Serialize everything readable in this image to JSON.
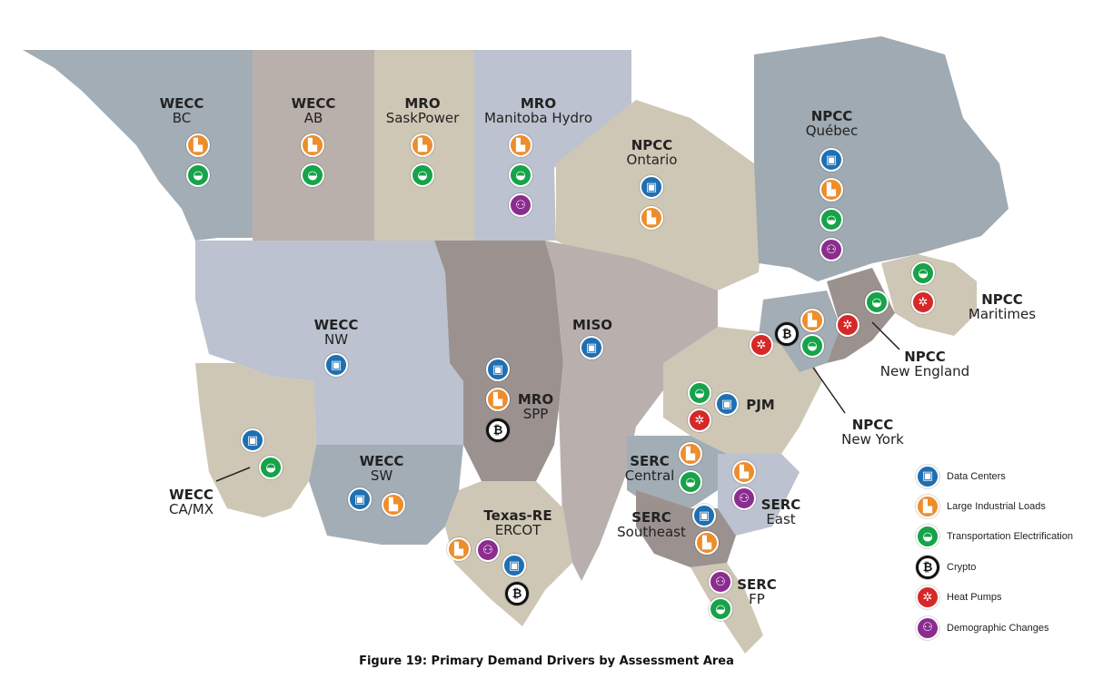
{
  "caption": "Figure 19: Primary Demand Drivers by Assessment Area",
  "colors": {
    "data_centers": "#1f6fb2",
    "industrial": "#ee8d2c",
    "transport": "#16a34a",
    "crypto": "#111111",
    "heat_pumps": "#d62828",
    "demographic": "#8b2c8f"
  },
  "legend": [
    {
      "key": "data_centers",
      "label": "Data Centers",
      "icon": "chip-icon"
    },
    {
      "key": "industrial",
      "label": "Large Industrial Loads",
      "icon": "factory-icon"
    },
    {
      "key": "transport",
      "label": "Transportation Electrification",
      "icon": "car-icon"
    },
    {
      "key": "crypto",
      "label": "Crypto",
      "icon": "bitcoin-icon"
    },
    {
      "key": "heat_pumps",
      "label": "Heat Pumps",
      "icon": "heat-pump-icon"
    },
    {
      "key": "demographic",
      "label": "Demographic Changes",
      "icon": "people-icon"
    }
  ],
  "regions": [
    {
      "id": "wecc-bc",
      "council": "WECC",
      "name": "BC",
      "drivers": [
        "industrial",
        "transport"
      ]
    },
    {
      "id": "wecc-ab",
      "council": "WECC",
      "name": "AB",
      "drivers": [
        "industrial",
        "transport"
      ]
    },
    {
      "id": "mro-sask",
      "council": "MRO",
      "name": "SaskPower",
      "drivers": [
        "industrial",
        "transport"
      ]
    },
    {
      "id": "mro-manitoba",
      "council": "MRO",
      "name": "Manitoba Hydro",
      "drivers": [
        "industrial",
        "transport",
        "demographic"
      ]
    },
    {
      "id": "npcc-ontario",
      "council": "NPCC",
      "name": "Ontario",
      "drivers": [
        "data_centers",
        "industrial"
      ]
    },
    {
      "id": "npcc-quebec",
      "council": "NPCC",
      "name": "Québec",
      "drivers": [
        "data_centers",
        "industrial",
        "transport",
        "demographic"
      ]
    },
    {
      "id": "npcc-maritimes",
      "council": "NPCC",
      "name": "Maritimes",
      "drivers": [
        "transport",
        "heat_pumps"
      ]
    },
    {
      "id": "npcc-newengland",
      "council": "NPCC",
      "name": "New England",
      "drivers": [
        "transport",
        "heat_pumps"
      ]
    },
    {
      "id": "npcc-newyork",
      "council": "NPCC",
      "name": "New York",
      "drivers": [
        "heat_pumps",
        "crypto",
        "industrial",
        "transport"
      ]
    },
    {
      "id": "wecc-nw",
      "council": "WECC",
      "name": "NW",
      "drivers": [
        "data_centers"
      ]
    },
    {
      "id": "miso",
      "council": "MISO",
      "name": "",
      "drivers": [
        "data_centers"
      ]
    },
    {
      "id": "mro-spp",
      "council": "MRO",
      "name": "SPP",
      "drivers": [
        "data_centers",
        "industrial",
        "crypto"
      ]
    },
    {
      "id": "pjm",
      "council": "PJM",
      "name": "",
      "drivers": [
        "transport",
        "heat_pumps",
        "data_centers"
      ]
    },
    {
      "id": "wecc-camx",
      "council": "WECC",
      "name": "CA/MX",
      "drivers": [
        "data_centers",
        "transport"
      ]
    },
    {
      "id": "wecc-sw",
      "council": "WECC",
      "name": "SW",
      "drivers": [
        "data_centers",
        "industrial"
      ]
    },
    {
      "id": "serc-central",
      "council": "SERC",
      "name": "Central",
      "drivers": [
        "industrial",
        "transport"
      ]
    },
    {
      "id": "serc-east",
      "council": "SERC",
      "name": "East",
      "drivers": [
        "industrial",
        "demographic"
      ]
    },
    {
      "id": "serc-southeast",
      "council": "SERC",
      "name": "Southeast",
      "drivers": [
        "data_centers",
        "industrial"
      ]
    },
    {
      "id": "texas-ercot",
      "council": "Texas-RE",
      "name": "ERCOT",
      "drivers": [
        "industrial",
        "demographic",
        "data_centers",
        "crypto"
      ]
    },
    {
      "id": "serc-fp",
      "council": "SERC",
      "name": "FP",
      "drivers": [
        "demographic",
        "transport"
      ]
    }
  ]
}
